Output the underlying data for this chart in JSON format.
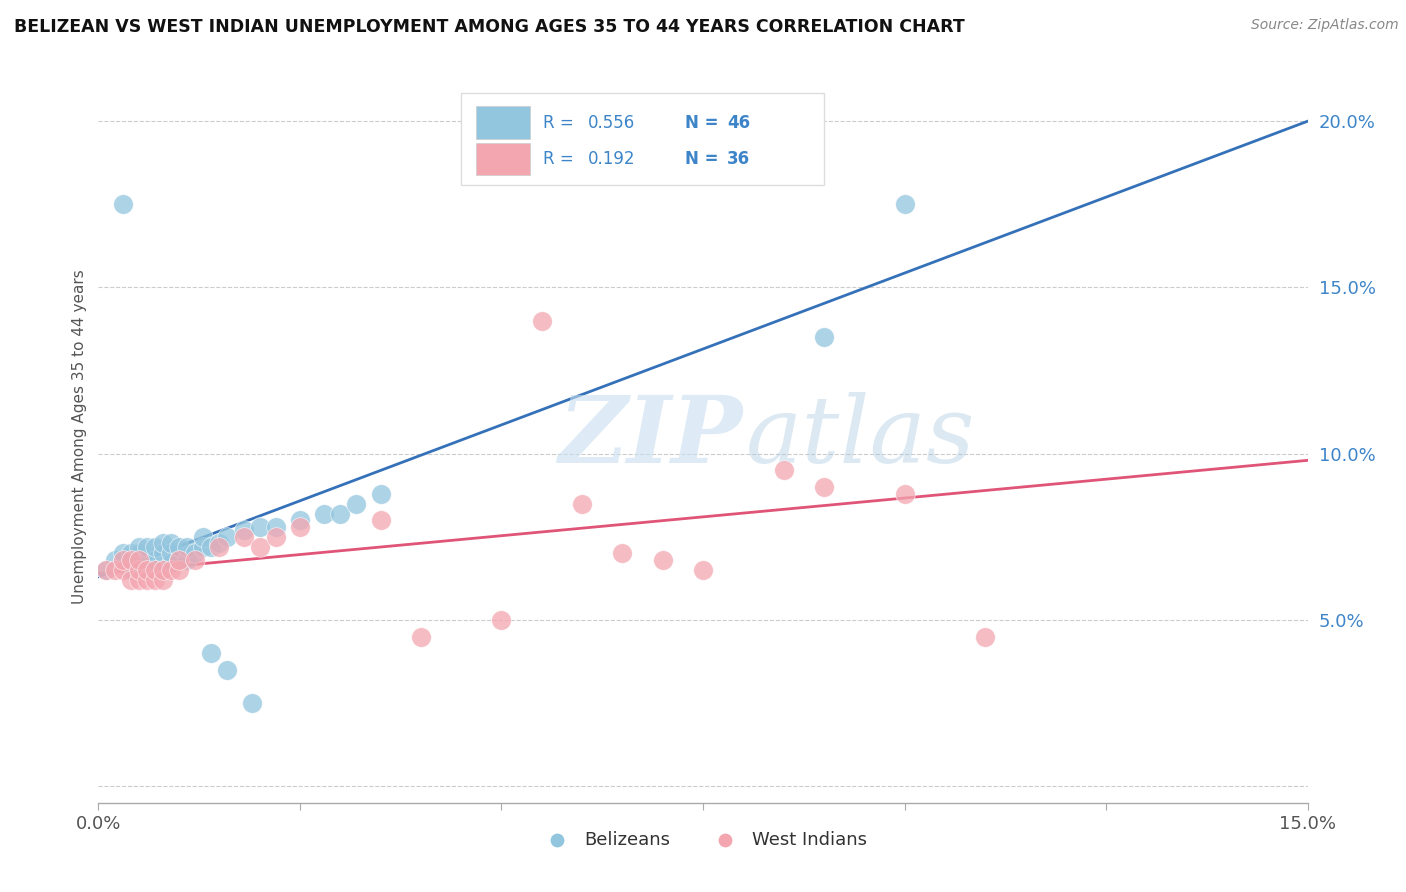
{
  "title": "BELIZEAN VS WEST INDIAN UNEMPLOYMENT AMONG AGES 35 TO 44 YEARS CORRELATION CHART",
  "source": "Source: ZipAtlas.com",
  "ylabel": "Unemployment Among Ages 35 to 44 years",
  "xlim": [
    0.0,
    0.15
  ],
  "ylim": [
    -0.005,
    0.215
  ],
  "xticks": [
    0.0,
    0.025,
    0.05,
    0.075,
    0.1,
    0.125,
    0.15
  ],
  "yticks": [
    0.0,
    0.05,
    0.1,
    0.15,
    0.2
  ],
  "background_color": "#ffffff",
  "grid_color": "#cccccc",
  "belizean_color": "#92c5de",
  "west_indian_color": "#f4a6b0",
  "belizean_line_color": "#3571b8",
  "west_indian_line_color": "#e05577",
  "legend_R_belizean": "0.556",
  "legend_N_belizean": "46",
  "legend_R_west_indian": "0.192",
  "legend_N_west_indian": "36",
  "watermark_zip": "ZIP",
  "watermark_atlas": "atlas",
  "belizean_x": [
    0.001,
    0.002,
    0.003,
    0.003,
    0.004,
    0.004,
    0.005,
    0.005,
    0.005,
    0.005,
    0.006,
    0.006,
    0.006,
    0.007,
    0.007,
    0.007,
    0.008,
    0.008,
    0.008,
    0.009,
    0.009,
    0.009,
    0.01,
    0.01,
    0.011,
    0.011,
    0.012,
    0.013,
    0.013,
    0.014,
    0.015,
    0.016,
    0.018,
    0.02,
    0.022,
    0.025,
    0.028,
    0.03,
    0.032,
    0.035,
    0.014,
    0.016,
    0.019,
    0.09,
    0.1,
    0.003
  ],
  "belizean_y": [
    0.065,
    0.068,
    0.068,
    0.07,
    0.065,
    0.07,
    0.065,
    0.068,
    0.07,
    0.072,
    0.065,
    0.068,
    0.072,
    0.065,
    0.068,
    0.072,
    0.065,
    0.07,
    0.073,
    0.067,
    0.07,
    0.073,
    0.068,
    0.072,
    0.068,
    0.072,
    0.07,
    0.072,
    0.075,
    0.072,
    0.073,
    0.075,
    0.077,
    0.078,
    0.078,
    0.08,
    0.082,
    0.082,
    0.085,
    0.088,
    0.04,
    0.035,
    0.025,
    0.135,
    0.175,
    0.175
  ],
  "west_indian_x": [
    0.001,
    0.002,
    0.003,
    0.003,
    0.004,
    0.004,
    0.005,
    0.005,
    0.005,
    0.006,
    0.006,
    0.007,
    0.007,
    0.008,
    0.008,
    0.009,
    0.01,
    0.01,
    0.012,
    0.015,
    0.018,
    0.02,
    0.022,
    0.025,
    0.035,
    0.04,
    0.05,
    0.055,
    0.06,
    0.065,
    0.07,
    0.075,
    0.085,
    0.09,
    0.1,
    0.11
  ],
  "west_indian_y": [
    0.065,
    0.065,
    0.065,
    0.068,
    0.062,
    0.068,
    0.062,
    0.065,
    0.068,
    0.062,
    0.065,
    0.062,
    0.065,
    0.062,
    0.065,
    0.065,
    0.065,
    0.068,
    0.068,
    0.072,
    0.075,
    0.072,
    0.075,
    0.078,
    0.08,
    0.045,
    0.05,
    0.14,
    0.085,
    0.07,
    0.068,
    0.065,
    0.095,
    0.09,
    0.088,
    0.045
  ],
  "belizean_trend_x": [
    0.0,
    0.15
  ],
  "belizean_trend_y": [
    0.063,
    0.2
  ],
  "west_indian_trend_x": [
    0.0,
    0.15
  ],
  "west_indian_trend_y": [
    0.064,
    0.098
  ]
}
